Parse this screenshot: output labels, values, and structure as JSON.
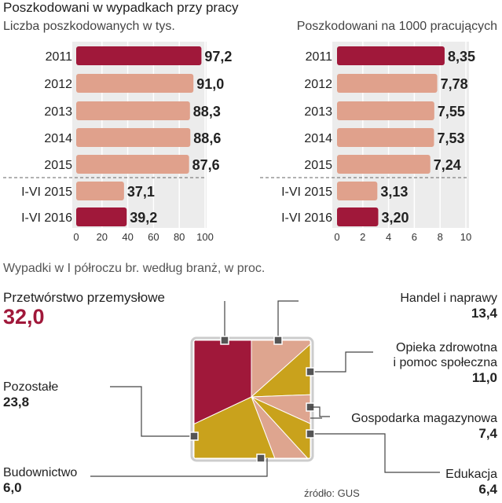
{
  "header": {
    "title": "Poszkodowani w wypadkach przy pracy"
  },
  "colors": {
    "highlight": "#a0183a",
    "bar": "#e0a18c",
    "panel": "#ececec",
    "grid": "#ffffff",
    "gold": "#c9a21c",
    "pink": "#dea58f"
  },
  "chart_data": [
    {
      "type": "bar",
      "orientation": "horizontal",
      "title": "Liczba poszkodowanych w tys.",
      "categories": [
        "2011",
        "2012",
        "2013",
        "2014",
        "2015",
        "I-VI 2015",
        "I-VI 2016"
      ],
      "values": [
        97.2,
        91.0,
        88.3,
        88.6,
        87.6,
        37.1,
        39.2
      ],
      "value_labels": [
        "97,2",
        "91,0",
        "88,3",
        "88,6",
        "87,6",
        "37,1",
        "39,2"
      ],
      "highlighted": [
        true,
        false,
        false,
        false,
        false,
        false,
        true
      ],
      "xlim": [
        0,
        100
      ],
      "xticks": [
        "0",
        "20",
        "40",
        "60",
        "80",
        "100"
      ],
      "tick_values": [
        0,
        20,
        40,
        60,
        80,
        100
      ]
    },
    {
      "type": "bar",
      "orientation": "horizontal",
      "title": "Poszkodowani  na  1000 pracujących",
      "categories": [
        "2011",
        "2012",
        "2013",
        "2014",
        "2015",
        "I-VI 2015",
        "I-VI 2016"
      ],
      "values": [
        8.35,
        7.78,
        7.55,
        7.53,
        7.24,
        3.13,
        3.2
      ],
      "value_labels": [
        "8,35",
        "7,78",
        "7,55",
        "7,53",
        "7,24",
        "3,13",
        "3,20"
      ],
      "highlighted": [
        true,
        false,
        false,
        false,
        false,
        false,
        true
      ],
      "xlim": [
        0,
        10
      ],
      "xticks": [
        "0",
        "2",
        "4",
        "6",
        "8",
        "10"
      ],
      "tick_values": [
        0,
        2,
        4,
        6,
        8,
        10
      ]
    },
    {
      "type": "pie",
      "title": "Wypadki w I półroczu br.  według branż, w proc.",
      "slices": [
        {
          "name": "Przetwórstwo przemysłowe",
          "value": 32.0,
          "label": "32,0",
          "color": "#a0183a"
        },
        {
          "name": "Handel i naprawy",
          "value": 13.4,
          "label": "13,4",
          "color": "#dea58f"
        },
        {
          "name": "Opieka zdrowotna i pomoc społeczna",
          "name_line1": "Opieka zdrowotna",
          "name_line2": "i pomoc społeczna",
          "value": 11.0,
          "label": "11,0",
          "color": "#c9a21c"
        },
        {
          "name": "Gospodarka magazynowa",
          "value": 7.4,
          "label": "7,4",
          "color": "#dea58f"
        },
        {
          "name": "Edukacja",
          "value": 6.4,
          "label": "6,4",
          "color": "#c9a21c"
        },
        {
          "name": "Budownictwo",
          "value": 6.0,
          "label": "6,0",
          "color": "#dea58f"
        },
        {
          "name": "Pozostałe",
          "value": 23.8,
          "label": "23,8",
          "color": "#c9a21c"
        }
      ]
    }
  ],
  "source": "źródło: GUS"
}
